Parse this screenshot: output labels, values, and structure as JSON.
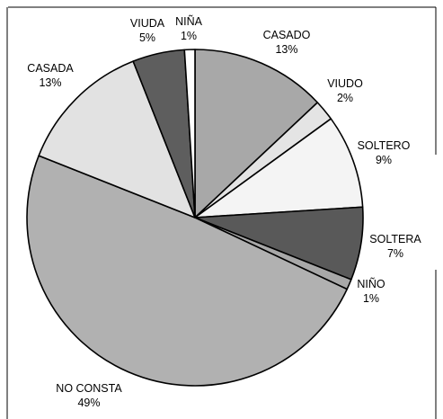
{
  "chart_data": {
    "type": "pie",
    "title": "",
    "start_angle_deg": 0,
    "direction": "clockwise",
    "legend": "none",
    "slices": [
      {
        "label": "CASADO",
        "value_label": "13%",
        "value": 13,
        "color": "#a8a8a8"
      },
      {
        "label": "VIUDO",
        "value_label": "2%",
        "value": 2,
        "color": "#e4e4e4"
      },
      {
        "label": "SOLTERO",
        "value_label": "9%",
        "value": 9,
        "color": "#f4f4f4"
      },
      {
        "label": "SOLTERA",
        "value_label": "7%",
        "value": 7,
        "color": "#595959"
      },
      {
        "label": "NIÑO",
        "value_label": "1%",
        "value": 1,
        "color": "#a8a8a8"
      },
      {
        "label": "NO CONSTA",
        "value_label": "49%",
        "value": 49,
        "color": "#b1b1b1"
      },
      {
        "label": "CASADA",
        "value_label": "13%",
        "value": 13,
        "color": "#e2e2e2"
      },
      {
        "label": "VIUDA",
        "value_label": "5%",
        "value": 5,
        "color": "#5e5e5e"
      },
      {
        "label": "NIÑA",
        "value_label": "1%",
        "value": 1,
        "color": "#ffffff"
      }
    ]
  }
}
